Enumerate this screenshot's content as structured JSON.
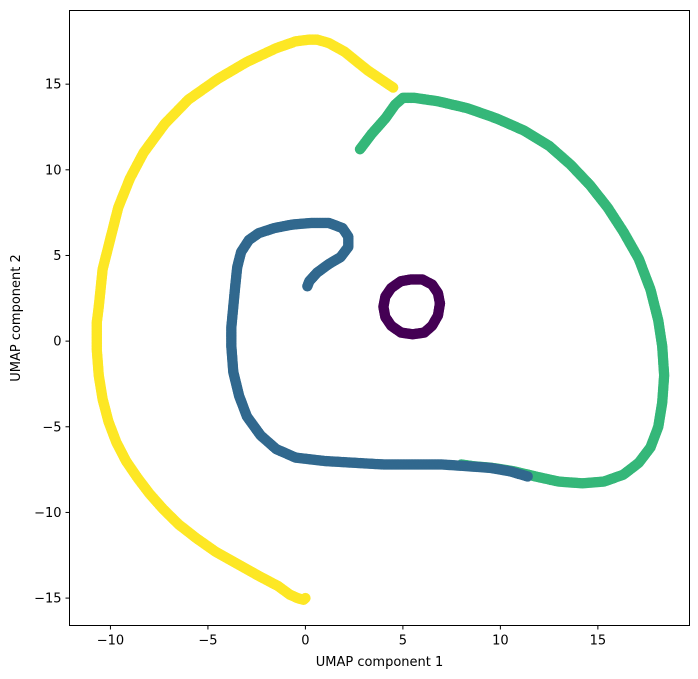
{
  "chart_data": {
    "type": "scatter",
    "title": "",
    "xlabel": "UMAP component 1",
    "ylabel": "UMAP component 2",
    "xlim": [
      -12.1,
      19.7
    ],
    "ylim": [
      -16.6,
      19.3
    ],
    "xticks": [
      -10,
      -5,
      0,
      5,
      10,
      15
    ],
    "yticks": [
      -15,
      -10,
      -5,
      0,
      5,
      10,
      15
    ],
    "xtick_labels": [
      "−10",
      "−5",
      "0",
      "5",
      "10",
      "15"
    ],
    "ytick_labels": [
      "−15",
      "−10",
      "−5",
      "0",
      "5",
      "10",
      "15"
    ],
    "grid": false,
    "legend": "none",
    "series": [
      {
        "color": "#fde725",
        "x": [
          4.5,
          3.2,
          2.0,
          1.2,
          0.6,
          0.2,
          -0.5,
          -1.5,
          -3.0,
          -4.5,
          -6.0,
          -7.2,
          -8.3,
          -9.0,
          -9.6,
          -10.0,
          -10.4,
          -10.6,
          -10.7,
          -10.7,
          -10.6,
          -10.4,
          -10.1,
          -9.7,
          -9.2,
          -8.6,
          -8.0,
          -7.3,
          -6.5,
          -5.6,
          -4.6,
          -3.5,
          -2.4,
          -1.4,
          -0.8,
          -0.4,
          -0.1,
          0.0
        ],
        "y": [
          14.8,
          15.8,
          16.9,
          17.4,
          17.6,
          17.6,
          17.5,
          17.1,
          16.3,
          15.3,
          14.1,
          12.7,
          11.0,
          9.5,
          7.8,
          6.0,
          4.2,
          2.0,
          1.1,
          -0.5,
          -2.0,
          -3.4,
          -4.7,
          -5.9,
          -7.0,
          -8.0,
          -8.9,
          -9.8,
          -10.7,
          -11.5,
          -12.3,
          -13.0,
          -13.7,
          -14.3,
          -14.8,
          -15.0,
          -15.1,
          -15.0
        ]
      },
      {
        "color": "#35b779",
        "x": [
          2.8,
          3.4,
          4.1,
          4.6,
          5.0,
          5.6,
          6.8,
          8.3,
          9.8,
          11.2,
          12.5,
          13.6,
          14.6,
          15.5,
          16.3,
          17.1,
          17.7,
          18.1,
          18.3,
          18.4,
          18.3,
          18.1,
          17.7,
          17.1,
          16.3,
          15.3,
          14.2,
          13.0,
          11.8,
          10.7,
          9.6,
          8.6,
          8.0
        ],
        "y": [
          11.2,
          12.1,
          13.0,
          13.8,
          14.2,
          14.2,
          14.0,
          13.6,
          13.0,
          12.3,
          11.4,
          10.3,
          9.1,
          7.8,
          6.4,
          4.8,
          3.0,
          1.2,
          -0.3,
          -2.0,
          -3.6,
          -5.0,
          -6.2,
          -7.1,
          -7.8,
          -8.2,
          -8.3,
          -8.2,
          -7.9,
          -7.6,
          -7.4,
          -7.3,
          -7.2
        ]
      },
      {
        "color": "#31688e",
        "x": [
          11.4,
          10.5,
          9.5,
          8.3,
          7.0,
          5.5,
          4.0,
          2.5,
          1.0,
          -0.5,
          -1.5,
          -2.3,
          -3.0,
          -3.4,
          -3.7,
          -3.8,
          -3.8,
          -3.7,
          -3.6,
          -3.5,
          -3.3,
          -2.9,
          -2.4,
          -1.6,
          -0.7,
          0.3,
          1.2,
          1.9,
          2.2,
          2.2,
          1.8,
          1.2,
          0.6,
          0.2,
          0.1
        ],
        "y": [
          -7.9,
          -7.6,
          -7.4,
          -7.3,
          -7.2,
          -7.2,
          -7.2,
          -7.1,
          -7.0,
          -6.8,
          -6.3,
          -5.5,
          -4.4,
          -3.2,
          -1.8,
          -0.3,
          0.8,
          2.0,
          3.2,
          4.3,
          5.2,
          5.9,
          6.3,
          6.6,
          6.8,
          6.9,
          6.9,
          6.6,
          6.1,
          5.5,
          4.9,
          4.5,
          4.0,
          3.5,
          3.2
        ]
      },
      {
        "color": "#440154",
        "x": [
          6.9,
          6.8,
          6.5,
          6.0,
          5.4,
          4.9,
          4.4,
          4.1,
          4.0,
          4.1,
          4.4,
          4.9,
          5.5,
          6.1,
          6.5,
          6.8,
          6.9
        ],
        "y": [
          2.2,
          2.8,
          3.3,
          3.6,
          3.6,
          3.5,
          3.1,
          2.6,
          2.0,
          1.4,
          0.9,
          0.5,
          0.4,
          0.5,
          0.9,
          1.5,
          2.2
        ]
      }
    ]
  }
}
